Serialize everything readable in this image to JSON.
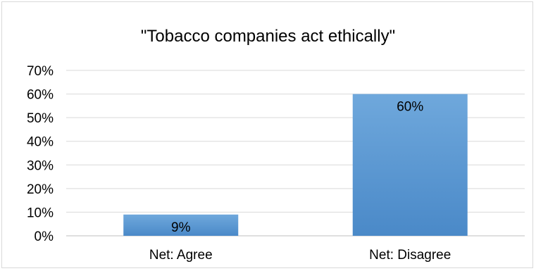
{
  "chart_data": {
    "type": "bar",
    "title": "\"Tobacco companies act ethically\"",
    "categories": [
      "Net: Agree",
      "Net: Disagree"
    ],
    "values": [
      9,
      60
    ],
    "data_labels": [
      "9%",
      "60%"
    ],
    "y_ticks": [
      "0%",
      "10%",
      "20%",
      "30%",
      "40%",
      "50%",
      "60%",
      "70%"
    ],
    "ylim": [
      0,
      70
    ],
    "y_unit": "%",
    "grid": true,
    "legend": "none",
    "xlabel": "",
    "ylabel": ""
  },
  "colors": {
    "bar_top": "#6fa8dc",
    "bar_bottom": "#4a89c8",
    "gridline": "#d9d9d9",
    "axis": "#bfbfbf"
  }
}
